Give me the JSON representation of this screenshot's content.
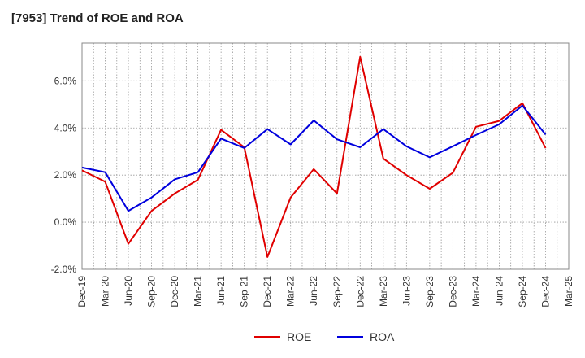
{
  "chart_data": {
    "type": "line",
    "title": "[7953]  Trend of ROE and ROA",
    "xlabel": "",
    "ylabel": "",
    "x": [
      "Dec-19",
      "Mar-20",
      "Jun-20",
      "Sep-20",
      "Dec-20",
      "Mar-21",
      "Jun-21",
      "Sep-21",
      "Dec-21",
      "Mar-22",
      "Jun-22",
      "Sep-22",
      "Dec-22",
      "Mar-23",
      "Jun-23",
      "Sep-23",
      "Dec-23",
      "Mar-24",
      "Jun-24",
      "Sep-24",
      "Dec-24",
      "Mar-25"
    ],
    "ylim": [
      -2.0,
      7.6
    ],
    "yticks": [
      -2.0,
      0.0,
      2.0,
      4.0,
      6.0
    ],
    "ytick_labels": [
      "-2.0%",
      "0.0%",
      "2.0%",
      "4.0%",
      "6.0%"
    ],
    "grid": true,
    "legend_position": "bottom",
    "series": [
      {
        "name": "ROE",
        "color": "#e00000",
        "values": [
          2.2,
          1.72,
          -0.92,
          0.48,
          1.22,
          1.8,
          3.92,
          3.18,
          -1.48,
          1.05,
          2.25,
          1.22,
          7.02,
          2.7,
          2.0,
          1.42,
          2.1,
          4.05,
          4.3,
          5.05,
          3.15,
          null
        ]
      },
      {
        "name": "ROA",
        "color": "#0000dd",
        "values": [
          2.32,
          2.12,
          0.48,
          1.05,
          1.82,
          2.12,
          3.55,
          3.15,
          3.95,
          3.3,
          4.32,
          3.52,
          3.18,
          3.95,
          3.22,
          2.75,
          3.22,
          3.7,
          4.15,
          4.95,
          3.72,
          null
        ]
      }
    ]
  }
}
